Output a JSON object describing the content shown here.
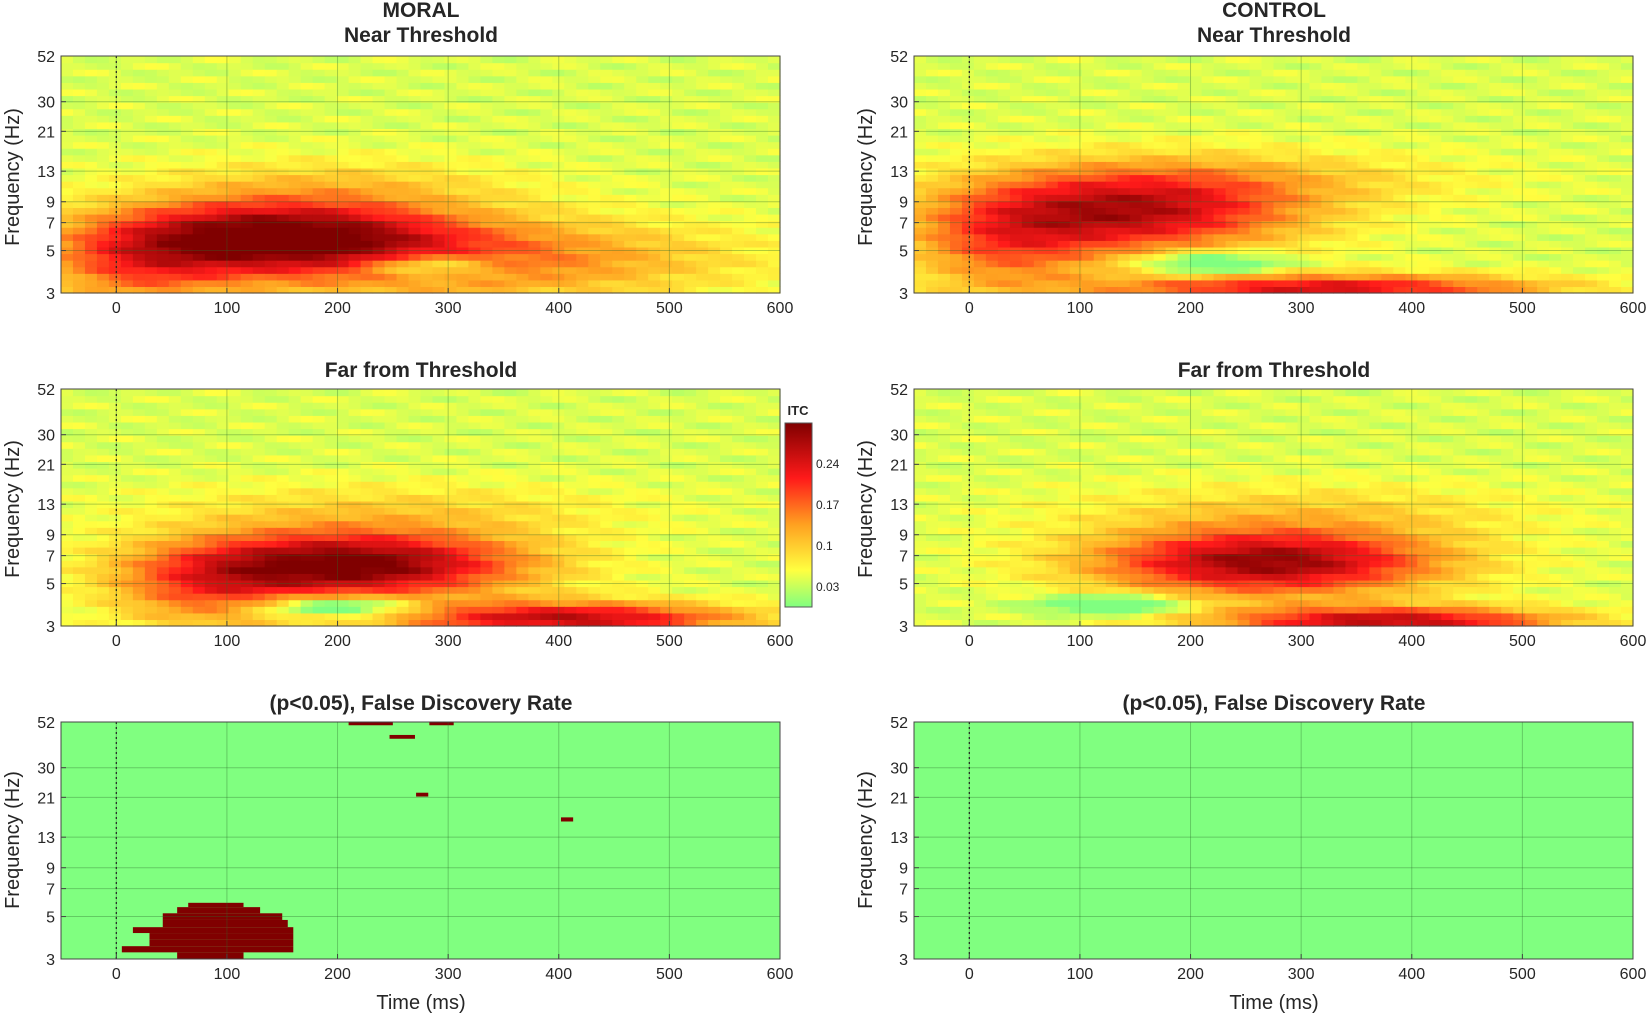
{
  "chart_data": [
    {
      "id": "moral_near",
      "type": "heatmap",
      "title_lines": [
        "MORAL",
        "Near Threshold"
      ],
      "xlabel": "",
      "ylabel": "Frequency (Hz)",
      "xlim": [
        -50,
        600
      ],
      "x_ticks": [
        0,
        100,
        200,
        300,
        400,
        500,
        600
      ],
      "y_ticks": [
        3,
        5,
        7,
        9,
        13,
        21,
        30,
        52
      ],
      "y_scale": "log",
      "colormap": "itc",
      "blobs": [
        {
          "t": 140,
          "f": 6,
          "st": 110,
          "sf": 0.3,
          "a": 0.26
        },
        {
          "t": 320,
          "f": 4.5,
          "st": 160,
          "sf": 0.35,
          "a": 0.12
        },
        {
          "t": 20,
          "f": 4,
          "st": 60,
          "sf": 0.35,
          "a": 0.1
        },
        {
          "t": 280,
          "f": 4.2,
          "st": 45,
          "sf": 0.1,
          "a": -0.12
        },
        {
          "t": 200,
          "f": 11,
          "st": 120,
          "sf": 0.25,
          "a": 0.05
        }
      ]
    },
    {
      "id": "control_near",
      "type": "heatmap",
      "title_lines": [
        "CONTROL",
        "Near Threshold"
      ],
      "xlabel": "",
      "ylabel": "Frequency (Hz)",
      "xlim": [
        -50,
        600
      ],
      "x_ticks": [
        0,
        100,
        200,
        300,
        400,
        500,
        600
      ],
      "y_ticks": [
        3,
        5,
        7,
        9,
        13,
        21,
        30,
        52
      ],
      "y_scale": "log",
      "colormap": "itc",
      "blobs": [
        {
          "t": 140,
          "f": 8,
          "st": 110,
          "sf": 0.35,
          "a": 0.22
        },
        {
          "t": 320,
          "f": 3.2,
          "st": 140,
          "sf": 0.12,
          "a": 0.2
        },
        {
          "t": 30,
          "f": 5,
          "st": 60,
          "sf": 0.4,
          "a": 0.1
        },
        {
          "t": 220,
          "f": 4.3,
          "st": 45,
          "sf": 0.1,
          "a": -0.12
        },
        {
          "t": 250,
          "f": 12,
          "st": 150,
          "sf": 0.25,
          "a": 0.05
        }
      ]
    },
    {
      "id": "moral_far",
      "type": "heatmap",
      "title_lines": [
        "Far from Threshold"
      ],
      "xlabel": "",
      "ylabel": "Frequency (Hz)",
      "xlim": [
        -50,
        600
      ],
      "x_ticks": [
        0,
        100,
        200,
        300,
        400,
        500,
        600
      ],
      "y_ticks": [
        3,
        5,
        7,
        9,
        13,
        21,
        30,
        52
      ],
      "y_scale": "log",
      "colormap": "itc",
      "blobs": [
        {
          "t": 210,
          "f": 6.3,
          "st": 110,
          "sf": 0.28,
          "a": 0.28
        },
        {
          "t": 410,
          "f": 3.3,
          "st": 110,
          "sf": 0.14,
          "a": 0.22
        },
        {
          "t": 80,
          "f": 4.5,
          "st": 60,
          "sf": 0.35,
          "a": 0.1
        },
        {
          "t": 200,
          "f": 3.8,
          "st": 50,
          "sf": 0.08,
          "a": -0.15
        },
        {
          "t": 250,
          "f": 12,
          "st": 150,
          "sf": 0.25,
          "a": 0.05
        }
      ]
    },
    {
      "id": "control_far",
      "type": "heatmap",
      "title_lines": [
        "Far from Threshold"
      ],
      "xlabel": "",
      "ylabel": "Frequency (Hz)",
      "xlim": [
        -50,
        600
      ],
      "x_ticks": [
        0,
        100,
        200,
        300,
        400,
        500,
        600
      ],
      "y_ticks": [
        3,
        5,
        7,
        9,
        13,
        21,
        30,
        52
      ],
      "y_scale": "log",
      "colormap": "itc",
      "blobs": [
        {
          "t": 270,
          "f": 6.5,
          "st": 110,
          "sf": 0.28,
          "a": 0.25
        },
        {
          "t": 380,
          "f": 3.2,
          "st": 110,
          "sf": 0.12,
          "a": 0.22
        },
        {
          "t": 130,
          "f": 3.9,
          "st": 45,
          "sf": 0.08,
          "a": -0.12
        },
        {
          "t": 300,
          "f": 12,
          "st": 150,
          "sf": 0.25,
          "a": 0.05
        }
      ]
    },
    {
      "id": "moral_fdr",
      "type": "heatmap",
      "title_lines": [
        "(p<0.05), False Discovery Rate"
      ],
      "xlabel": "Time (ms)",
      "ylabel": "Frequency (Hz)",
      "xlim": [
        -50,
        600
      ],
      "x_ticks": [
        0,
        100,
        200,
        300,
        400,
        500,
        600
      ],
      "y_ticks": [
        3,
        5,
        7,
        9,
        13,
        21,
        30,
        52
      ],
      "y_scale": "log",
      "colormap": "binary",
      "significant_regions": [
        {
          "t0": 65,
          "t1": 115,
          "f0": 5.6,
          "f1": 5.9
        },
        {
          "t0": 55,
          "t1": 130,
          "f0": 5.2,
          "f1": 5.6
        },
        {
          "t0": 42,
          "t1": 150,
          "f0": 4.8,
          "f1": 5.2
        },
        {
          "t0": 42,
          "t1": 155,
          "f0": 4.4,
          "f1": 4.8
        },
        {
          "t0": 15,
          "t1": 160,
          "f0": 4.1,
          "f1": 4.4
        },
        {
          "t0": 30,
          "t1": 160,
          "f0": 3.8,
          "f1": 4.1
        },
        {
          "t0": 30,
          "t1": 160,
          "f0": 3.5,
          "f1": 3.8
        },
        {
          "t0": 5,
          "t1": 160,
          "f0": 3.25,
          "f1": 3.5
        },
        {
          "t0": 55,
          "t1": 115,
          "f0": 3.0,
          "f1": 3.25
        },
        {
          "t0": 210,
          "t1": 250,
          "f0": 50,
          "f1": 52
        },
        {
          "t0": 283,
          "t1": 305,
          "f0": 50,
          "f1": 52
        },
        {
          "t0": 247,
          "t1": 270,
          "f0": 42.5,
          "f1": 44.5
        },
        {
          "t0": 271,
          "t1": 282,
          "f0": 21.2,
          "f1": 22.2
        },
        {
          "t0": 402,
          "t1": 413,
          "f0": 15.7,
          "f1": 16.5
        }
      ]
    },
    {
      "id": "control_fdr",
      "type": "heatmap",
      "title_lines": [
        "(p<0.05), False Discovery Rate"
      ],
      "xlabel": "Time (ms)",
      "ylabel": "Frequency (Hz)",
      "xlim": [
        -50,
        600
      ],
      "x_ticks": [
        0,
        100,
        200,
        300,
        400,
        500,
        600
      ],
      "y_ticks": [
        3,
        5,
        7,
        9,
        13,
        21,
        30,
        52
      ],
      "y_scale": "log",
      "colormap": "binary",
      "significant_regions": []
    }
  ],
  "colorbar": {
    "title": "ITC",
    "ticks": [
      "0.24",
      "0.17",
      "0.1",
      "0.03"
    ],
    "tick_values": [
      0.24,
      0.17,
      0.1,
      0.03
    ],
    "range": [
      0.0,
      0.31
    ]
  },
  "colors": {
    "green": "#80ff80",
    "yellow": "#ffff40",
    "orange": "#ffa020",
    "red": "#ff1a1a",
    "dark_red": "#800000",
    "grid": "#2a6b2a"
  }
}
